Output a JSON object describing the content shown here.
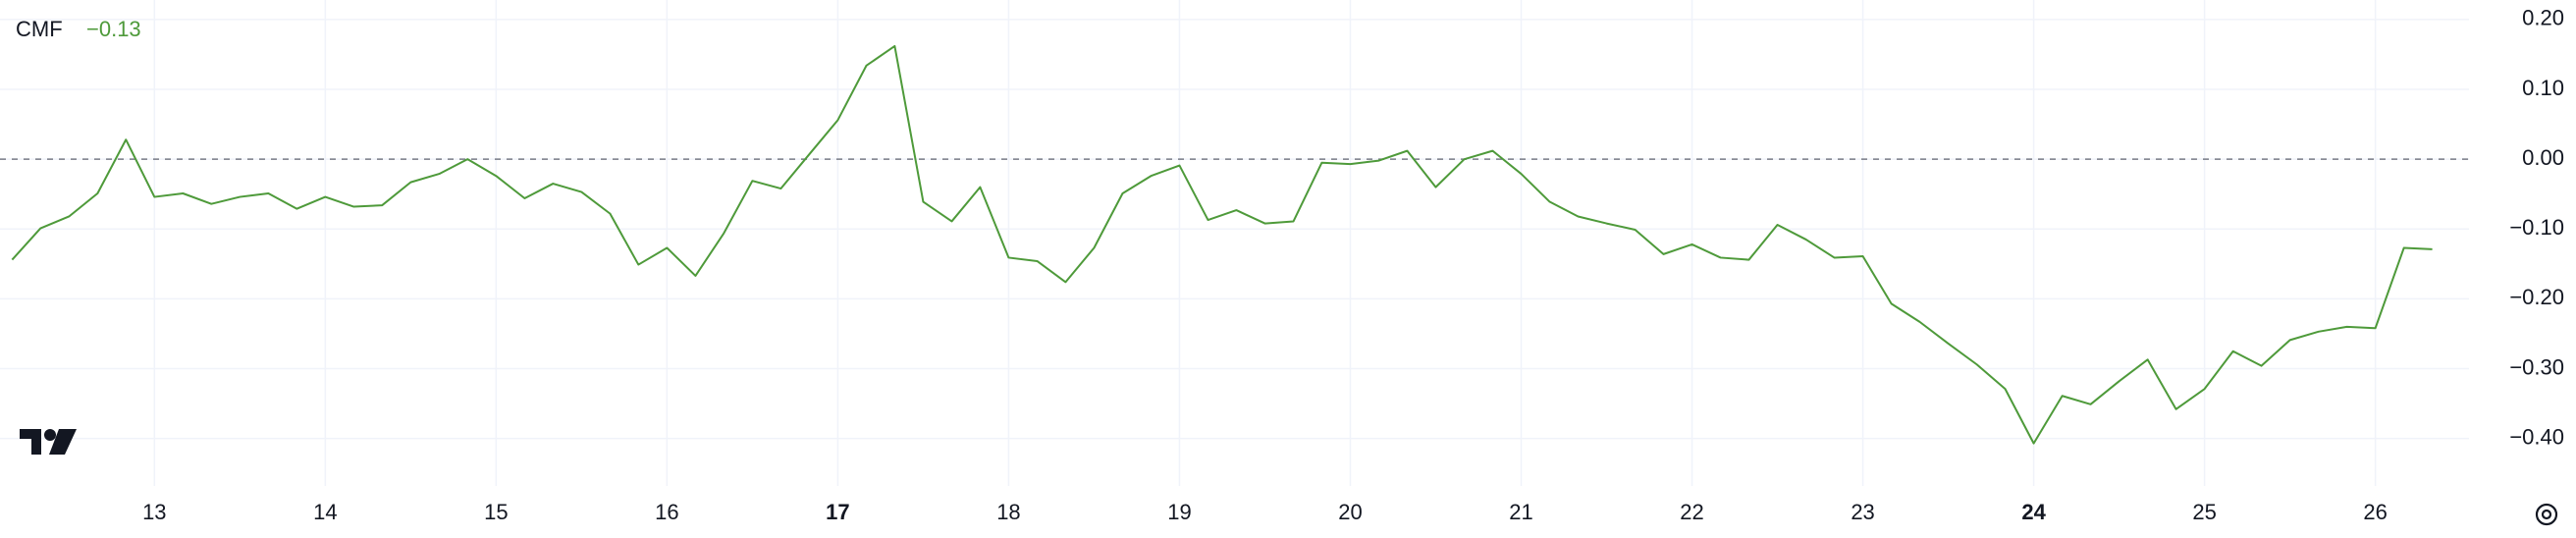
{
  "chart_data": {
    "type": "line",
    "series": [
      {
        "name": "CMF",
        "color": "#4e9a3a",
        "last_value_label": "−0.13",
        "x": [
          12.167,
          12.333,
          12.5,
          12.667,
          12.833,
          13,
          13.167,
          13.333,
          13.5,
          13.667,
          13.833,
          14,
          14.167,
          14.333,
          14.5,
          14.667,
          14.833,
          15,
          15.167,
          15.333,
          15.5,
          15.667,
          15.833,
          16,
          16.167,
          16.333,
          16.5,
          16.667,
          16.833,
          17,
          17.167,
          17.333,
          17.5,
          17.667,
          17.833,
          18,
          18.167,
          18.333,
          18.5,
          18.667,
          18.833,
          19,
          19.167,
          19.333,
          19.5,
          19.667,
          19.833,
          20,
          20.167,
          20.333,
          20.5,
          20.667,
          20.833,
          21,
          21.167,
          21.333,
          21.5,
          21.667,
          21.833,
          22,
          22.167,
          22.333,
          22.5,
          22.667,
          22.833,
          23,
          23.167,
          23.333,
          23.5,
          23.667,
          23.833,
          24,
          24.167,
          24.333,
          24.5,
          24.667,
          24.833,
          25,
          25.167,
          25.333,
          25.5,
          25.667,
          25.833,
          26,
          26.167,
          26.333
        ],
        "values": [
          -0.144,
          -0.099,
          -0.082,
          -0.049,
          0.028,
          -0.054,
          -0.049,
          -0.064,
          -0.054,
          -0.049,
          -0.071,
          -0.054,
          -0.068,
          -0.066,
          -0.033,
          -0.021,
          0.0,
          -0.024,
          -0.056,
          -0.035,
          -0.047,
          -0.078,
          -0.151,
          -0.127,
          -0.167,
          -0.106,
          -0.031,
          -0.042,
          0.007,
          0.056,
          0.134,
          0.162,
          -0.061,
          -0.089,
          -0.04,
          -0.141,
          -0.146,
          -0.176,
          -0.127,
          -0.049,
          -0.024,
          -0.009,
          -0.087,
          -0.073,
          -0.092,
          -0.089,
          -0.005,
          -0.007,
          -0.002,
          0.012,
          -0.04,
          0.0,
          0.012,
          -0.021,
          -0.061,
          -0.082,
          -0.092,
          -0.101,
          -0.136,
          -0.122,
          -0.141,
          -0.144,
          -0.094,
          -0.115,
          -0.141,
          -0.139,
          -0.207,
          -0.233,
          -0.264,
          -0.294,
          -0.329,
          -0.407,
          -0.339,
          -0.351,
          -0.318,
          -0.287,
          -0.358,
          -0.329,
          -0.275,
          -0.296,
          -0.259,
          -0.247,
          -0.24,
          -0.242,
          -0.127,
          -0.129
        ]
      }
    ],
    "xlim": [
      12.096,
      26.548
    ],
    "xticks": [
      13,
      14,
      15,
      16,
      17,
      18,
      19,
      20,
      21,
      22,
      23,
      24,
      25,
      26
    ],
    "bold_xticks": [
      17,
      24
    ],
    "ylim": [
      -0.468,
      0.228
    ],
    "yticks": [
      {
        "value": 0.2,
        "label": "0.20"
      },
      {
        "value": 0.1,
        "label": "0.10"
      },
      {
        "value": 0,
        "label": "0.00"
      },
      {
        "value": -0.1,
        "label": "−0.10"
      },
      {
        "value": -0.2,
        "label": "−0.20"
      },
      {
        "value": -0.3,
        "label": "−0.30"
      },
      {
        "value": -0.4,
        "label": "−0.40"
      }
    ],
    "hline": 0,
    "grid": true
  }
}
